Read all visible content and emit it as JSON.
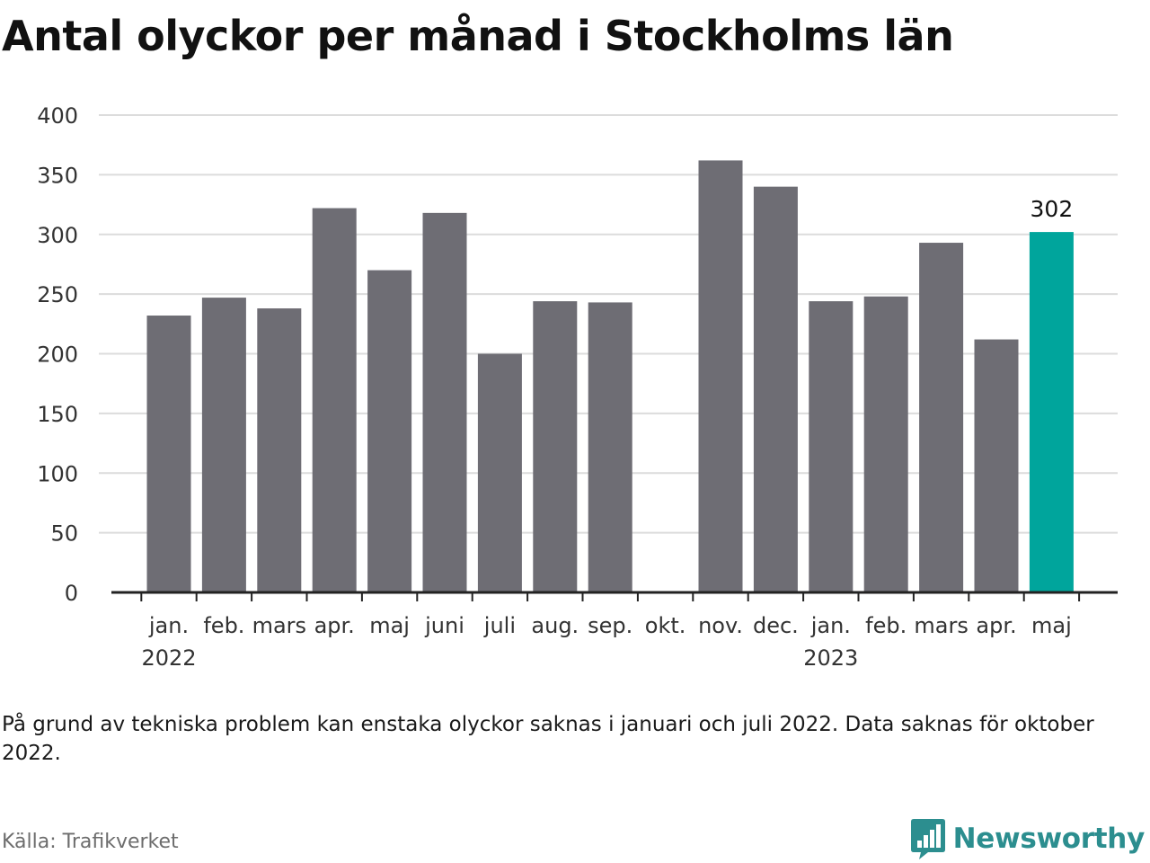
{
  "title": "Antal olyckor per månad i Stockholms län",
  "note": "På grund av tekniska problem kan enstaka olyckor saknas i januari och juli 2022. Data saknas för oktober 2022.",
  "source": "Källa: Trafikverket",
  "brand": {
    "name": "Newsworthy",
    "icon": "newsworthy-logo-icon",
    "color": "#2c8e8f"
  },
  "chart_data": {
    "type": "bar",
    "title": "Antal olyckor per månad i Stockholms län",
    "xlabel": "",
    "ylabel": "",
    "ylim": [
      0,
      400
    ],
    "yticks": [
      0,
      50,
      100,
      150,
      200,
      250,
      300,
      350,
      400
    ],
    "grid": true,
    "legend": "none",
    "categories": [
      "jan.",
      "feb.",
      "mars",
      "apr.",
      "maj",
      "juni",
      "juli",
      "aug.",
      "sep.",
      "okt.",
      "nov.",
      "dec.",
      "jan.",
      "feb.",
      "mars",
      "apr.",
      "maj"
    ],
    "year_labels": [
      {
        "index": 0,
        "label": "2022"
      },
      {
        "index": 12,
        "label": "2023"
      }
    ],
    "values": [
      232,
      247,
      238,
      322,
      270,
      318,
      200,
      244,
      243,
      null,
      362,
      340,
      244,
      248,
      293,
      212,
      302
    ],
    "colors": {
      "bar": "#6e6d74",
      "highlight": "#00a59c",
      "grid": "#dcdcdc",
      "axis": "#222222"
    },
    "highlight_index": 16,
    "annotations": [
      {
        "index": 16,
        "label": "302"
      }
    ]
  }
}
